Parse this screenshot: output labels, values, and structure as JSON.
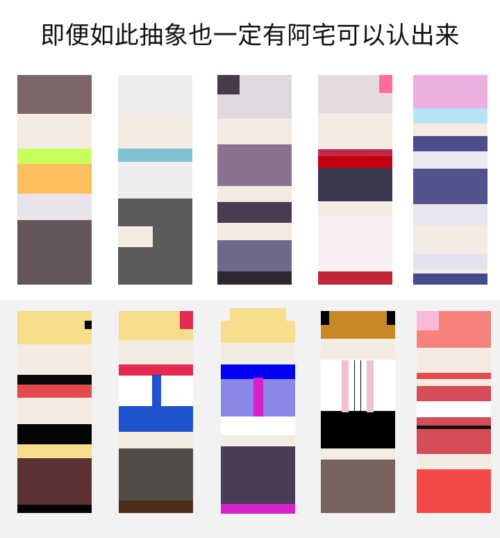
{
  "title": "即便如此抽象也一定有阿宅可以认出来",
  "rows": [
    {
      "name": "top-row",
      "swatches": [
        {
          "id": "swatch-1",
          "bands": [
            {
              "color": "#7d6668",
              "weight": 55
            },
            {
              "color": "#f4ebe2",
              "weight": 50
            },
            {
              "color": "#c8ff5c",
              "weight": 22
            },
            {
              "color": "#ffbf5e",
              "weight": 42
            },
            {
              "color": "#ebe3ec",
              "weight": 38
            },
            {
              "color": "#635558",
              "weight": 92
            }
          ]
        },
        {
          "id": "swatch-2",
          "bands": [
            {
              "color": "#eeeeee",
              "weight": 55
            },
            {
              "color": "#f4ebe2",
              "weight": 50
            },
            {
              "color": "#7fc0d4",
              "weight": 18
            },
            {
              "color": "#eeeeee",
              "weight": 53
            },
            {
              "color": "#5b5b5b",
              "weight": 122
            }
          ],
          "extras": [
            {
              "kind": "notch",
              "color": "#f4ebe2"
            }
          ]
        },
        {
          "id": "swatch-3",
          "bands": [
            {
              "color": "#e0d8df",
              "weight": 63
            },
            {
              "color": "#f4ebe2",
              "weight": 37
            },
            {
              "color": "#8a7390",
              "weight": 60
            },
            {
              "color": "#f4ebe2",
              "weight": 23
            },
            {
              "color": "#493c51",
              "weight": 30
            },
            {
              "color": "#f4ebe2",
              "weight": 25
            },
            {
              "color": "#6c6a88",
              "weight": 45
            },
            {
              "color": "#2d2731",
              "weight": 19
            }
          ],
          "extras": [
            {
              "kind": "corner-tl",
              "color": "#473a4d"
            }
          ]
        },
        {
          "id": "swatch-4",
          "bands": [
            {
              "color": "#e5dbde",
              "weight": 55
            },
            {
              "color": "#f4ebe2",
              "weight": 52
            },
            {
              "color": "#c0284a",
              "weight": 10
            },
            {
              "color": "#c20010",
              "weight": 17
            },
            {
              "color": "#3a3950",
              "weight": 48
            },
            {
              "color": "#f4ebe2",
              "weight": 22
            },
            {
              "color": "#f8eff0",
              "weight": 79
            },
            {
              "color": "#c0283a",
              "weight": 19
            }
          ],
          "extras": [
            {
              "kind": "corner-tr",
              "color": "#ff6e9a"
            }
          ]
        },
        {
          "id": "swatch-5",
          "bands": [
            {
              "color": "#ecb0df",
              "weight": 48
            },
            {
              "color": "#b6e3f7",
              "weight": 22
            },
            {
              "color": "#f4ebe2",
              "weight": 18
            },
            {
              "color": "#4b4c8c",
              "weight": 22
            },
            {
              "color": "#ebe8f2",
              "weight": 25
            },
            {
              "color": "#53528e",
              "weight": 50
            },
            {
              "color": "#e6e5f0",
              "weight": 30
            },
            {
              "color": "#f4ebe2",
              "weight": 42
            },
            {
              "color": "#e3e2ee",
              "weight": 22
            },
            {
              "color": "#f4ebe2",
              "weight": 6
            },
            {
              "color": "#464a8c",
              "weight": 16
            }
          ]
        }
      ]
    },
    {
      "name": "bottom-row",
      "swatches": [
        {
          "id": "swatch-6",
          "bands": [
            {
              "color": "#f5dd8b",
              "weight": 47
            },
            {
              "color": "#f4ebe2",
              "weight": 44
            },
            {
              "color": "#0a0a0a",
              "weight": 14
            },
            {
              "color": "#e44b4f",
              "weight": 18
            },
            {
              "color": "#f4ebe2",
              "weight": 38
            },
            {
              "color": "#050505",
              "weight": 28
            },
            {
              "color": "#f5dd8b",
              "weight": 20
            },
            {
              "color": "#5c3035",
              "weight": 66
            },
            {
              "color": "#050505",
              "weight": 12
            }
          ],
          "extras": [
            {
              "kind": "dot-r",
              "color": "#000000"
            }
          ]
        },
        {
          "id": "swatch-7",
          "bands": [
            {
              "color": "#f5dd8b",
              "weight": 42
            },
            {
              "color": "#f4ebe2",
              "weight": 34
            },
            {
              "color": "#e32a50",
              "weight": 16
            },
            {
              "color": "#ffffff",
              "weight": 44
            },
            {
              "color": "#1e52cc",
              "weight": 36
            },
            {
              "color": "#f4ebe2",
              "weight": 24
            },
            {
              "color": "#504b47",
              "weight": 74
            },
            {
              "color": "#4c2d19",
              "weight": 18
            }
          ],
          "extras": [
            {
              "kind": "corner-tr",
              "color": "#e32a50"
            },
            {
              "kind": "tee",
              "color": "#1e52cc"
            }
          ]
        },
        {
          "id": "swatch-8",
          "bands": [
            {
              "color": "#f5dd8b",
              "weight": 45
            },
            {
              "color": "#f4ebe2",
              "weight": 30
            },
            {
              "color": "#0000f2",
              "weight": 20
            },
            {
              "color": "#8a88e6",
              "weight": 52
            },
            {
              "color": "#ffffff",
              "weight": 26
            },
            {
              "color": "#f4ebe2",
              "weight": 16
            },
            {
              "color": "#483c54",
              "weight": 80
            },
            {
              "color": "#d820cc",
              "weight": 13
            }
          ],
          "extras": [
            {
              "kind": "crown",
              "color": "#f5dd8b"
            },
            {
              "kind": "stripe-v",
              "color": "#d820cc"
            }
          ]
        },
        {
          "id": "swatch-9",
          "bands": [
            {
              "color": "#c98827",
              "weight": 40
            },
            {
              "color": "#f4ebe2",
              "weight": 30
            },
            {
              "color": "#ffffff",
              "weight": 74
            },
            {
              "color": "#000000",
              "weight": 55
            },
            {
              "color": "#f4ebe2",
              "weight": 16
            },
            {
              "color": "#77625f",
              "weight": 77
            }
          ],
          "extras": [
            {
              "kind": "ears",
              "color": "#000000"
            },
            {
              "kind": "pink-stripes",
              "color": "#f1bfd1"
            }
          ]
        },
        {
          "id": "swatch-10",
          "bands": [
            {
              "color": "#f7827b",
              "weight": 52
            },
            {
              "color": "#f4ebe2",
              "weight": 36
            },
            {
              "color": "#e44b4f",
              "weight": 9
            },
            {
              "color": "#f4ebe2",
              "weight": 10
            },
            {
              "color": "#d54d57",
              "weight": 22
            },
            {
              "color": "#ffffff",
              "weight": 22
            },
            {
              "color": "#d54d57",
              "weight": 12
            },
            {
              "color": "#111111",
              "weight": 5
            },
            {
              "color": "#d54d57",
              "weight": 36
            },
            {
              "color": "#f4ebe2",
              "weight": 22
            },
            {
              "color": "#f44a4a",
              "weight": 62
            }
          ],
          "extras": [
            {
              "kind": "corner-tl",
              "color": "#f8b8d8"
            }
          ]
        }
      ]
    }
  ]
}
